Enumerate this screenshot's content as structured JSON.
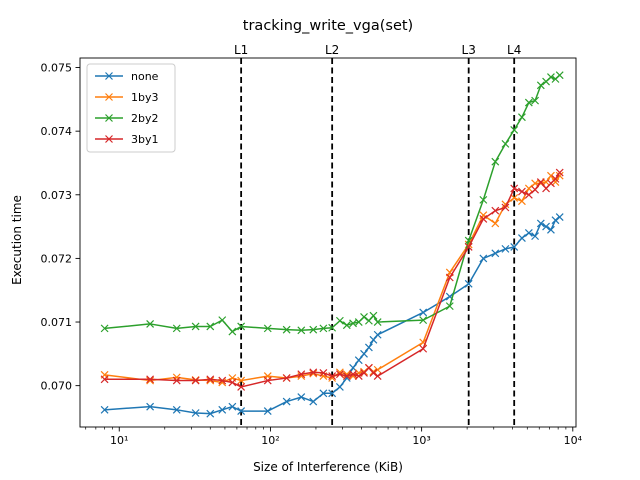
{
  "chart_data": {
    "type": "line",
    "title": "tracking_write_vga(set)",
    "xlabel": "Size of Interference (KiB)",
    "ylabel": "Execution time",
    "xscale": "log",
    "xlim": [
      5.5,
      10500
    ],
    "ylim": [
      0.06935,
      0.07515
    ],
    "x_ticks": [
      {
        "value": 10,
        "label": "10¹"
      },
      {
        "value": 100,
        "label": "10²"
      },
      {
        "value": 1000,
        "label": "10³"
      },
      {
        "value": 10000,
        "label": "10⁴"
      }
    ],
    "y_ticks": [
      {
        "value": 0.07,
        "label": "0.070"
      },
      {
        "value": 0.071,
        "label": "0.071"
      },
      {
        "value": 0.072,
        "label": "0.072"
      },
      {
        "value": 0.073,
        "label": "0.073"
      },
      {
        "value": 0.074,
        "label": "0.074"
      },
      {
        "value": 0.075,
        "label": "0.075"
      }
    ],
    "grid": false,
    "legend": "top-left",
    "vlines": [
      {
        "label": "L1",
        "x": 64
      },
      {
        "label": "L2",
        "x": 256
      },
      {
        "label": "L3",
        "x": 2048
      },
      {
        "label": "L4",
        "x": 4096
      }
    ],
    "series": [
      {
        "name": "none",
        "color": "#1f77b4",
        "x": [
          8,
          16,
          24,
          32,
          40,
          48,
          56,
          64,
          96,
          128,
          160,
          192,
          224,
          256,
          288,
          320,
          352,
          384,
          416,
          448,
          480,
          512,
          1024,
          1536,
          2048,
          2560,
          3072,
          3584,
          4096,
          4608,
          5120,
          5632,
          6144,
          6656,
          7168,
          7680,
          8192
        ],
        "y": [
          0.06962,
          0.06967,
          0.06962,
          0.06957,
          0.06956,
          0.06962,
          0.06967,
          0.0696,
          0.0696,
          0.06975,
          0.06982,
          0.06975,
          0.06988,
          0.06988,
          0.06998,
          0.07012,
          0.07028,
          0.0704,
          0.0705,
          0.0706,
          0.07072,
          0.0708,
          0.07115,
          0.0714,
          0.0716,
          0.072,
          0.07208,
          0.07215,
          0.07218,
          0.07232,
          0.0724,
          0.07235,
          0.07255,
          0.0725,
          0.07245,
          0.0726,
          0.07265
        ]
      },
      {
        "name": "1by3",
        "color": "#ff7f0e",
        "x": [
          8,
          16,
          24,
          32,
          40,
          48,
          56,
          64,
          96,
          128,
          160,
          192,
          224,
          256,
          288,
          320,
          352,
          384,
          416,
          448,
          480,
          512,
          1024,
          1536,
          2048,
          2560,
          3072,
          3584,
          4096,
          4608,
          5120,
          5632,
          6144,
          6656,
          7168,
          7680,
          8192
        ],
        "y": [
          0.07017,
          0.07008,
          0.07013,
          0.07009,
          0.07008,
          0.07005,
          0.07012,
          0.07008,
          0.07015,
          0.07012,
          0.07015,
          0.07019,
          0.07015,
          0.07012,
          0.07021,
          0.07018,
          0.07015,
          0.0702,
          0.07022,
          0.07028,
          0.07022,
          0.07025,
          0.07068,
          0.07178,
          0.07222,
          0.07268,
          0.07255,
          0.07285,
          0.07295,
          0.0729,
          0.0731,
          0.07318,
          0.07318,
          0.0732,
          0.0733,
          0.0732,
          0.0733
        ]
      },
      {
        "name": "2by2",
        "color": "#2ca02c",
        "x": [
          8,
          16,
          24,
          32,
          40,
          48,
          56,
          64,
          96,
          128,
          160,
          192,
          224,
          256,
          288,
          320,
          352,
          384,
          416,
          448,
          480,
          512,
          1024,
          1536,
          2048,
          2560,
          3072,
          3584,
          4096,
          4608,
          5120,
          5632,
          6144,
          6656,
          7168,
          7680,
          8192
        ],
        "y": [
          0.0709,
          0.07097,
          0.0709,
          0.07093,
          0.07093,
          0.07103,
          0.07085,
          0.07093,
          0.0709,
          0.07088,
          0.07087,
          0.07088,
          0.0709,
          0.07091,
          0.07102,
          0.07095,
          0.07098,
          0.071,
          0.07108,
          0.07102,
          0.0711,
          0.071,
          0.07103,
          0.07125,
          0.07228,
          0.07292,
          0.07352,
          0.0738,
          0.07402,
          0.07422,
          0.07445,
          0.07448,
          0.07472,
          0.07478,
          0.07485,
          0.07482,
          0.07488
        ]
      },
      {
        "name": "3by1",
        "color": "#d62728",
        "x": [
          8,
          16,
          24,
          32,
          40,
          48,
          56,
          64,
          96,
          128,
          160,
          192,
          224,
          256,
          288,
          320,
          352,
          384,
          416,
          448,
          480,
          512,
          1024,
          1536,
          2048,
          2560,
          3072,
          3584,
          4096,
          4608,
          5120,
          5632,
          6144,
          6656,
          7168,
          7680,
          8192
        ],
        "y": [
          0.0701,
          0.0701,
          0.07008,
          0.07008,
          0.0701,
          0.07008,
          0.07005,
          0.06998,
          0.07008,
          0.07012,
          0.07018,
          0.07021,
          0.0702,
          0.07015,
          0.07018,
          0.07015,
          0.07018,
          0.07015,
          0.0702,
          0.07028,
          0.0702,
          0.07015,
          0.07058,
          0.0717,
          0.07218,
          0.07262,
          0.07275,
          0.0728,
          0.0731,
          0.07305,
          0.073,
          0.07308,
          0.0732,
          0.0731,
          0.07318,
          0.07325,
          0.07335
        ]
      }
    ]
  }
}
